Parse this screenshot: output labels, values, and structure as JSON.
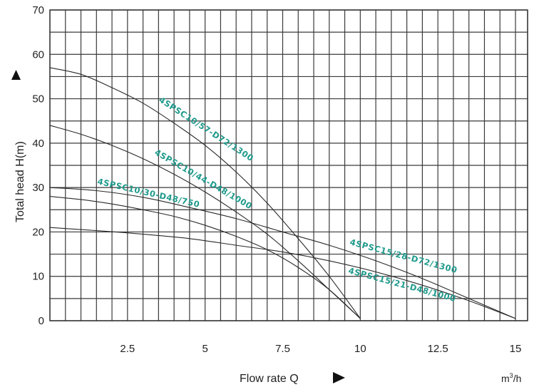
{
  "chart_data": {
    "type": "line",
    "xlabel": "Flow rate Q",
    "ylabel": "Total head H(m)",
    "x_unit": "m³/h",
    "xlim": [
      0,
      15.5
    ],
    "ylim": [
      0,
      70
    ],
    "x_ticks": [
      2.5,
      5,
      7.5,
      10,
      12.5,
      15
    ],
    "x_tick_labels": [
      "2.5",
      "5",
      "7.5",
      "10",
      "12.5",
      "15"
    ],
    "y_ticks": [
      0,
      10,
      20,
      30,
      40,
      50,
      60,
      70
    ],
    "y_tick_labels": [
      "0",
      "10",
      "20",
      "30",
      "40",
      "50",
      "60",
      "70"
    ],
    "grid": true,
    "series": [
      {
        "name": "4SPSC10/57-D72/1300",
        "x": [
          0,
          1,
          2,
          3,
          4,
          5,
          6,
          7,
          8,
          9,
          10
        ],
        "y": [
          57,
          55.5,
          52.5,
          49,
          44.5,
          39.5,
          33.5,
          26.5,
          18.5,
          10,
          0.5
        ]
      },
      {
        "name": "4SPSC10/44-D48/1000",
        "x": [
          0,
          1,
          2,
          3,
          4,
          5,
          6,
          7,
          8,
          9,
          10
        ],
        "y": [
          44,
          42,
          39.5,
          36.5,
          33,
          29,
          24.5,
          19.5,
          13.5,
          7,
          0.5
        ]
      },
      {
        "name": "4SPSC10/30-D48/750",
        "x": [
          0,
          1,
          2,
          3,
          4,
          5,
          6,
          7,
          8,
          9,
          10
        ],
        "y": [
          28,
          27.3,
          26.3,
          25,
          23.5,
          21.5,
          19,
          16,
          12,
          7,
          0.5
        ]
      },
      {
        "name": "4SPSC15/28-D72/1300",
        "x": [
          0,
          1.5,
          3,
          4.5,
          6,
          7.5,
          9,
          10.5,
          12,
          13.5,
          15
        ],
        "y": [
          30,
          29.3,
          27.8,
          25.5,
          23,
          20,
          17,
          13.5,
          9.5,
          5,
          0.5
        ]
      },
      {
        "name": "4SPSC15/21-D48/1000",
        "x": [
          0,
          1.5,
          3,
          4.5,
          6,
          7.5,
          9,
          10.5,
          12,
          13.5,
          15
        ],
        "y": [
          21,
          20.3,
          19.5,
          18.5,
          17,
          15.5,
          13.5,
          11,
          8,
          4.5,
          0.5
        ]
      }
    ]
  }
}
